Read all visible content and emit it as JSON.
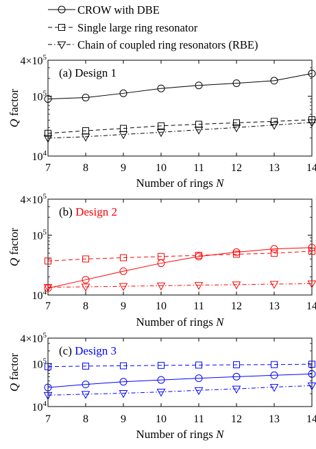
{
  "legend": [
    {
      "label": "CROW with DBE",
      "marker": "circle",
      "dash": "solid"
    },
    {
      "label": "Single large ring resonator",
      "marker": "square",
      "dash": "dashed"
    },
    {
      "label": "Chain of coupled ring resonators (RBE)",
      "marker": "triangle-down",
      "dash": "dashdot"
    }
  ],
  "chart_data": [
    {
      "type": "line",
      "panel_label": "(a)",
      "title": "Design 1",
      "color": "#000000",
      "xlabel": "Number of rings ",
      "xlabel_var": "N",
      "ylabel_var": "Q",
      "ylabel": " factor",
      "x": [
        7,
        8,
        9,
        10,
        11,
        12,
        13,
        14
      ],
      "xlim": [
        7,
        14
      ],
      "ylim": [
        10000,
        400000
      ],
      "yscale": "log",
      "y_ticks": [
        {
          "mant": "10",
          "exp": "4"
        },
        {
          "mant": "10",
          "exp": "5"
        },
        {
          "mant": "4×10",
          "exp": "5"
        }
      ],
      "series": [
        {
          "name": "CROW with DBE",
          "values": [
            90000,
            95000,
            112000,
            135000,
            152000,
            165000,
            182000,
            240000
          ]
        },
        {
          "name": "Single large ring resonator",
          "values": [
            24000,
            26500,
            29000,
            32000,
            34000,
            36000,
            38000,
            40500
          ]
        },
        {
          "name": "Chain of coupled ring resonators (RBE)",
          "values": [
            20000,
            21000,
            23000,
            25000,
            27500,
            30000,
            33000,
            36500
          ]
        }
      ]
    },
    {
      "type": "line",
      "panel_label": "(b)",
      "title": "Design 2",
      "color": "#ff0000",
      "xlabel": "Number of rings ",
      "xlabel_var": "N",
      "ylabel_var": "Q",
      "ylabel": " factor",
      "x": [
        7,
        8,
        9,
        10,
        11,
        12,
        13,
        14
      ],
      "xlim": [
        7,
        14
      ],
      "ylim": [
        10000,
        400000
      ],
      "yscale": "log",
      "y_ticks": [
        {
          "mant": "10",
          "exp": "4"
        },
        {
          "mant": "10",
          "exp": "5"
        },
        {
          "mant": "4×10",
          "exp": "5"
        }
      ],
      "series": [
        {
          "name": "CROW with DBE",
          "values": [
            13000,
            18000,
            25000,
            34000,
            44000,
            52000,
            59000,
            62000
          ]
        },
        {
          "name": "Single large ring resonator",
          "values": [
            37000,
            40000,
            42000,
            44000,
            46000,
            48000,
            50000,
            54000
          ]
        },
        {
          "name": "Chain of coupled ring resonators (RBE)",
          "values": [
            13500,
            13700,
            14000,
            14300,
            14600,
            14900,
            15200,
            15500
          ]
        }
      ]
    },
    {
      "type": "line",
      "panel_label": "(c)",
      "title": "Design 3",
      "color": "#0000ff",
      "xlabel": "Number of rings ",
      "xlabel_var": "N",
      "ylabel_var": "Q",
      "ylabel": " factor",
      "x": [
        7,
        8,
        9,
        10,
        11,
        12,
        13,
        14
      ],
      "xlim": [
        7,
        14
      ],
      "ylim": [
        10000,
        400000
      ],
      "yscale": "log",
      "y_ticks": [
        {
          "mant": "10",
          "exp": "4"
        },
        {
          "mant": "10",
          "exp": "5"
        },
        {
          "mant": "4×10",
          "exp": "5"
        }
      ],
      "series": [
        {
          "name": "CROW with DBE",
          "values": [
            28000,
            33000,
            38000,
            42000,
            46000,
            50000,
            54000,
            58000
          ]
        },
        {
          "name": "Single large ring resonator",
          "values": [
            86000,
            88500,
            90000,
            92000,
            93500,
            95000,
            96000,
            98000
          ]
        },
        {
          "name": "Chain of coupled ring resonators (RBE)",
          "values": [
            18500,
            19500,
            20500,
            22000,
            24000,
            26000,
            28500,
            31000
          ]
        }
      ]
    }
  ]
}
